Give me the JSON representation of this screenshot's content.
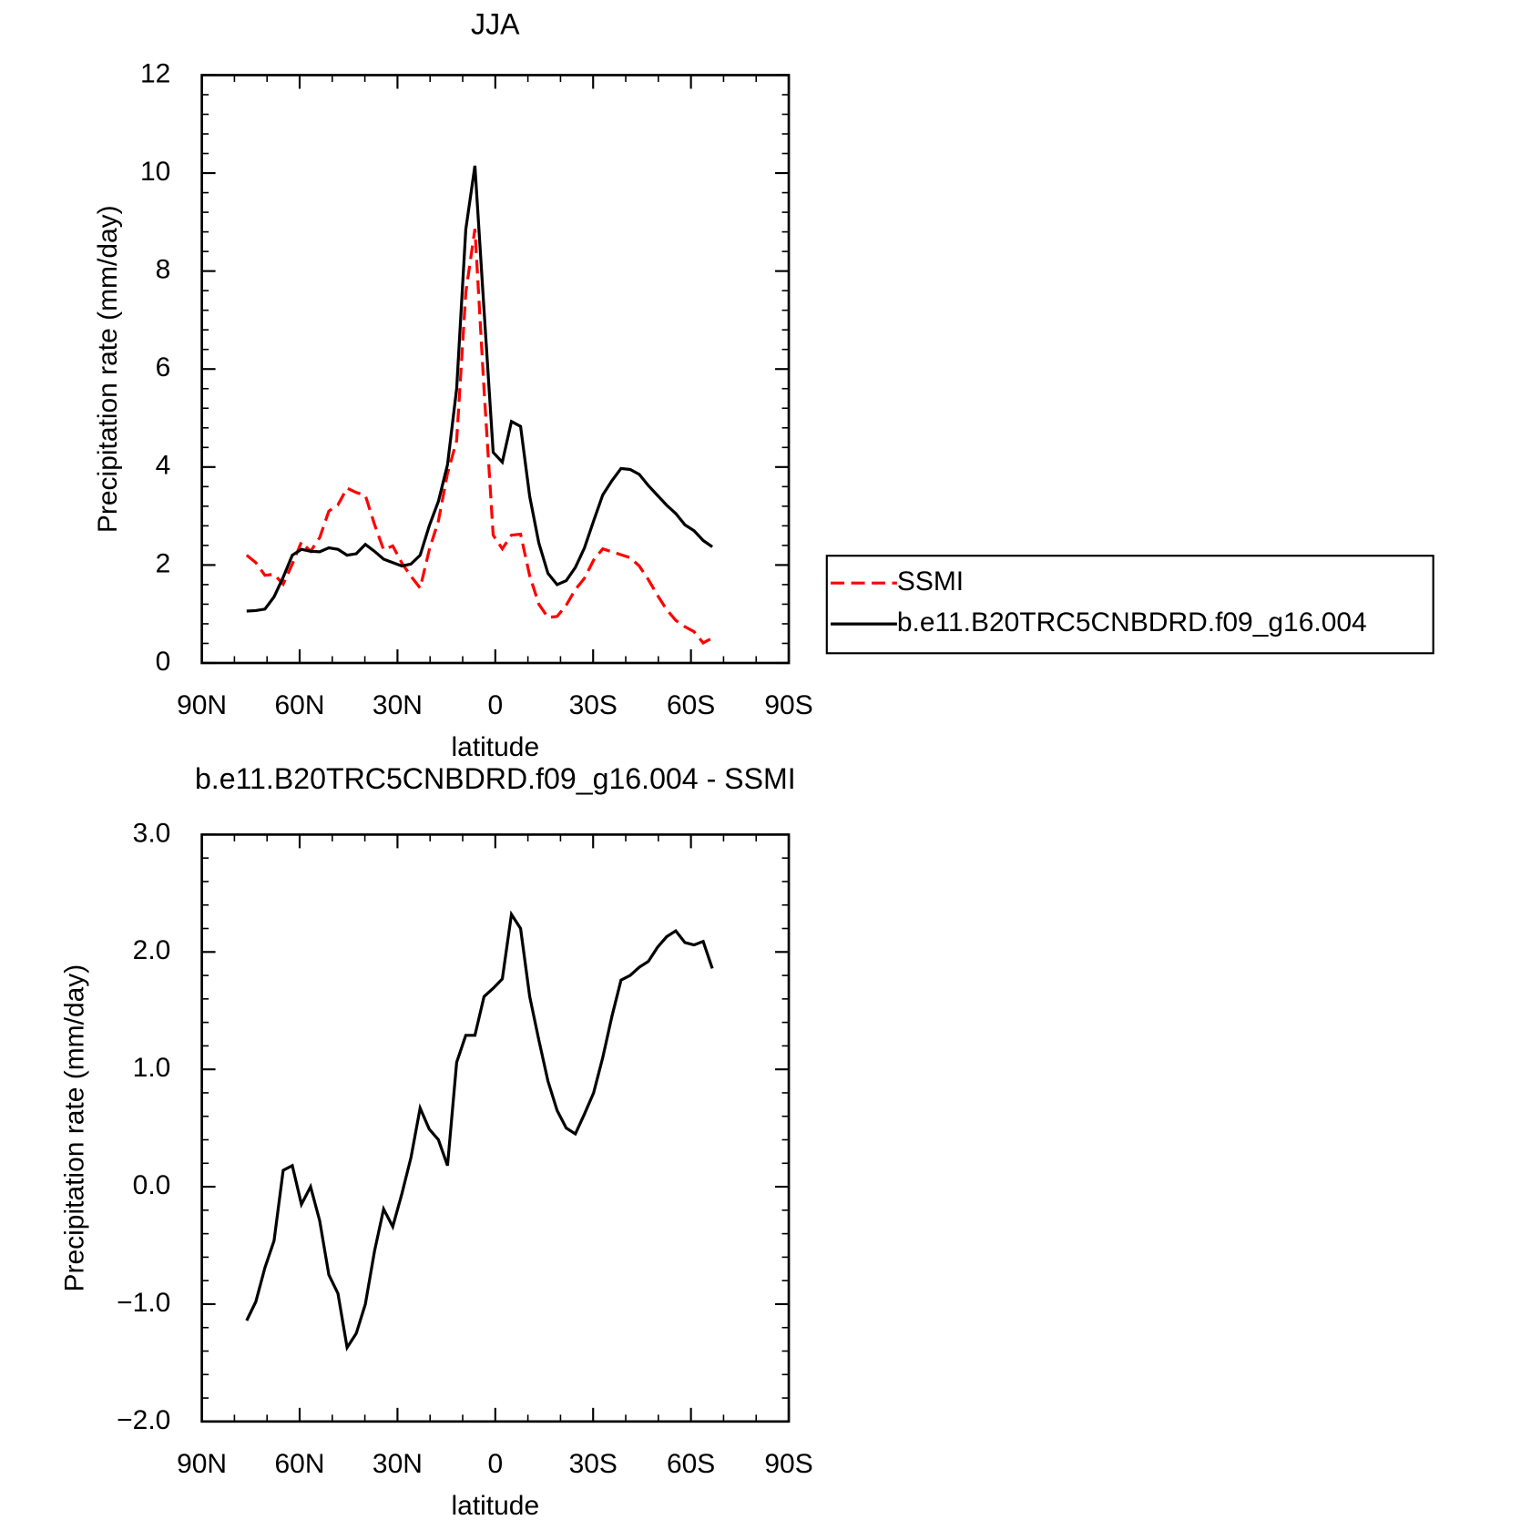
{
  "chart_data": [
    {
      "type": "line",
      "title": "JJA",
      "xlabel": "latitude",
      "ylabel": "Precipitation rate (mm/day)",
      "x": [
        76.25,
        73.45,
        70.65,
        67.85,
        65.05,
        62.25,
        59.45,
        56.65,
        53.85,
        51.05,
        48.25,
        45.45,
        42.65,
        39.85,
        37.05,
        34.25,
        31.45,
        28.65,
        25.85,
        23.05,
        20.25,
        17.45,
        14.65,
        11.85,
        9.05,
        6.25,
        3.45,
        0.65,
        -2.15,
        -4.95,
        -7.75,
        -10.55,
        -13.35,
        -16.15,
        -18.95,
        -21.75,
        -24.55,
        -27.35,
        -30.15,
        -32.95,
        -35.75,
        -38.55,
        -41.35,
        -44.15,
        -46.95,
        -49.75,
        -52.55,
        -55.35,
        -58.15,
        -60.95,
        -63.75,
        -66.55
      ],
      "series": [
        {
          "name": "SSMI",
          "color": "#ff0000",
          "line_style": "dashed",
          "values": [
            2.2,
            2.05,
            1.79,
            1.81,
            1.61,
            2.02,
            2.47,
            2.28,
            2.56,
            3.1,
            3.23,
            3.57,
            3.48,
            3.42,
            2.83,
            2.31,
            2.39,
            2.04,
            1.77,
            1.53,
            2.31,
            2.9,
            3.87,
            4.54,
            7.56,
            8.86,
            5.58,
            2.61,
            2.33,
            2.61,
            2.63,
            1.78,
            1.2,
            0.93,
            0.95,
            1.18,
            1.5,
            1.73,
            2.1,
            2.33,
            2.27,
            2.21,
            2.15,
            1.98,
            1.7,
            1.38,
            1.09,
            0.87,
            0.74,
            0.64,
            0.41,
            0.51
          ]
        },
        {
          "name": "b.e11.B20TRC5CNBDRD.f09_g16.004",
          "color": "#000000",
          "line_style": "solid",
          "values": [
            1.06,
            1.07,
            1.1,
            1.35,
            1.75,
            2.2,
            2.32,
            2.28,
            2.27,
            2.35,
            2.32,
            2.2,
            2.23,
            2.42,
            2.28,
            2.12,
            2.05,
            1.98,
            2.02,
            2.2,
            2.8,
            3.3,
            4.05,
            5.6,
            8.85,
            10.15,
            7.2,
            4.3,
            4.1,
            4.93,
            4.83,
            3.4,
            2.45,
            1.83,
            1.6,
            1.68,
            1.95,
            2.35,
            2.9,
            3.43,
            3.72,
            3.97,
            3.95,
            3.85,
            3.62,
            3.42,
            3.22,
            3.05,
            2.82,
            2.7,
            2.5,
            2.37
          ]
        }
      ],
      "xlim": [
        90,
        -90
      ],
      "xticks": [
        {
          "value": 90,
          "label": "90N"
        },
        {
          "value": 60,
          "label": "60N"
        },
        {
          "value": 30,
          "label": "30N"
        },
        0,
        {
          "value": -30,
          "label": "30S"
        },
        {
          "value": -60,
          "label": "60S"
        },
        {
          "value": -90,
          "label": "90S"
        }
      ],
      "xminorticks": [
        80,
        70,
        50,
        40,
        20,
        10,
        -10,
        -20,
        -40,
        -50,
        -70,
        -80
      ],
      "ylim": [
        0,
        12
      ],
      "yticks": [
        0,
        2,
        4,
        6,
        8,
        10,
        12
      ],
      "yminorticks": [
        0.4,
        0.8,
        1.2,
        1.6,
        2.4,
        2.8,
        3.2,
        3.6,
        4.4,
        4.8,
        5.2,
        5.6,
        6.4,
        6.8,
        7.2,
        7.6,
        8.4,
        8.8,
        9.2,
        9.6,
        10.4,
        10.8,
        11.2,
        11.6
      ],
      "legend": "right"
    },
    {
      "type": "line",
      "title": "b.e11.B20TRC5CNBDRD.f09_g16.004 - SSMI",
      "xlabel": "latitude",
      "ylabel": "Precipitation rate (mm/day)",
      "x": [
        76.25,
        73.45,
        70.65,
        67.85,
        65.05,
        62.25,
        59.45,
        56.65,
        53.85,
        51.05,
        48.25,
        45.45,
        42.65,
        39.85,
        37.05,
        34.25,
        31.45,
        28.65,
        25.85,
        23.05,
        20.25,
        17.45,
        14.65,
        11.85,
        9.05,
        6.25,
        3.45,
        0.65,
        -2.15,
        -4.95,
        -7.75,
        -10.55,
        -13.35,
        -16.15,
        -18.95,
        -21.75,
        -24.55,
        -27.35,
        -30.15,
        -32.95,
        -35.75,
        -38.55,
        -41.35,
        -44.15,
        -46.95,
        -49.75,
        -52.55,
        -55.35,
        -58.15,
        -60.95,
        -63.75,
        -66.55
      ],
      "values": [
        -1.14,
        -0.98,
        -0.69,
        -0.46,
        0.14,
        0.18,
        -0.15,
        0.0,
        -0.29,
        -0.75,
        -0.91,
        -1.37,
        -1.25,
        -1.0,
        -0.55,
        -0.19,
        -0.34,
        -0.06,
        0.25,
        0.67,
        0.49,
        0.4,
        0.18,
        1.06,
        1.29,
        1.29,
        1.62,
        1.69,
        1.77,
        2.32,
        2.2,
        1.62,
        1.25,
        0.9,
        0.65,
        0.5,
        0.45,
        0.62,
        0.8,
        1.1,
        1.45,
        1.76,
        1.8,
        1.87,
        1.92,
        2.04,
        2.13,
        2.18,
        2.08,
        2.06,
        2.09,
        1.86
      ],
      "color": "#000000",
      "xlim": [
        90,
        -90
      ],
      "xticks": [
        {
          "value": 90,
          "label": "90N"
        },
        {
          "value": 60,
          "label": "60N"
        },
        {
          "value": 30,
          "label": "30N"
        },
        0,
        {
          "value": -30,
          "label": "30S"
        },
        {
          "value": -60,
          "label": "60S"
        },
        {
          "value": -90,
          "label": "90S"
        }
      ],
      "xminorticks": [
        80,
        70,
        50,
        40,
        20,
        10,
        -10,
        -20,
        -40,
        -50,
        -70,
        -80
      ],
      "ylim": [
        -2,
        3
      ],
      "yticks": [
        {
          "value": -2,
          "label": "−2.0"
        },
        {
          "value": -1,
          "label": "−1.0"
        },
        {
          "value": 0,
          "label": "0.0"
        },
        {
          "value": 1,
          "label": "1.0"
        },
        {
          "value": 2,
          "label": "2.0"
        },
        {
          "value": 3,
          "label": "3.0"
        }
      ],
      "yminorticks": [
        -1.8,
        -1.6,
        -1.4,
        -1.2,
        -0.8,
        -0.6,
        -0.4,
        -0.2,
        0.2,
        0.4,
        0.6,
        0.8,
        1.2,
        1.4,
        1.6,
        1.8,
        2.2,
        2.4,
        2.6,
        2.8
      ]
    }
  ]
}
